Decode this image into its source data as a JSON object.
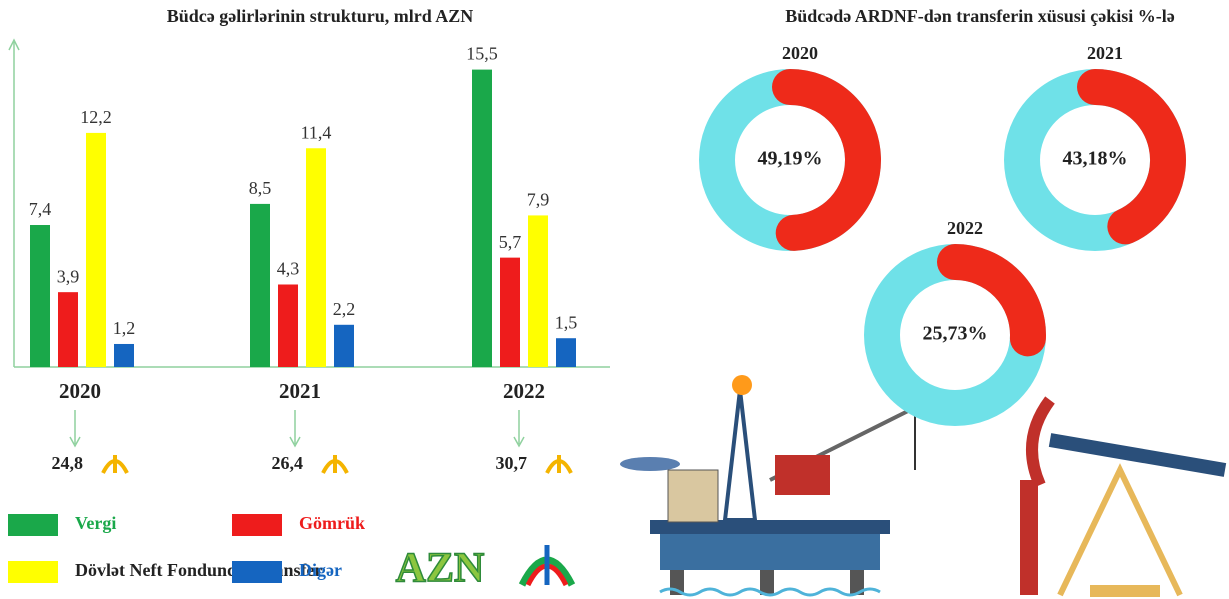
{
  "chart_data": [
    {
      "type": "bar",
      "title": "Büdcə gəlirlərinin strukturu, mlrd AZN",
      "categories": [
        "2020",
        "2021",
        "2022"
      ],
      "series": [
        {
          "name": "Vergi",
          "color": "#1aa84a",
          "label_color": "#1aa84a",
          "values": [
            7.4,
            8.5,
            15.5
          ],
          "value_labels": [
            "7,4",
            "8,5",
            "15,5"
          ]
        },
        {
          "name": "Gömrük",
          "color": "#ee1c1c",
          "label_color": "#ee1c1c",
          "values": [
            3.9,
            4.3,
            5.7
          ],
          "value_labels": [
            "3,9",
            "4,3",
            "5,7"
          ]
        },
        {
          "name": "Dövlət Neft Fondundan transfer",
          "color": "#ffff00",
          "label_color": "#222222",
          "values": [
            12.2,
            11.4,
            7.9
          ],
          "value_labels": [
            "12,2",
            "11,4",
            "7,9"
          ]
        },
        {
          "name": "Digər",
          "color": "#1565c0",
          "label_color": "#1565c0",
          "values": [
            1.2,
            2.2,
            1.5
          ],
          "value_labels": [
            "1,2",
            "2,2",
            "1,5"
          ]
        }
      ],
      "totals": {
        "values": [
          24.8,
          26.4,
          30.7
        ],
        "value_labels": [
          "24,8",
          "26,4",
          "30,7"
        ]
      },
      "ylim": [
        0,
        16
      ]
    },
    {
      "type": "donut",
      "title": "Büdcədə ARDNF-dən transferin xüsusi çəkisi %-lə",
      "categories": [
        "2020",
        "2021",
        "2022"
      ],
      "values": [
        49.19,
        43.18,
        25.73
      ],
      "value_labels": [
        "49,19%",
        "43,18%",
        "25,73%"
      ],
      "ylim": [
        0,
        100
      ],
      "color": "#ee2a1a",
      "track_color": "#6fe1e8"
    }
  ],
  "logo": {
    "text": "AZN"
  }
}
